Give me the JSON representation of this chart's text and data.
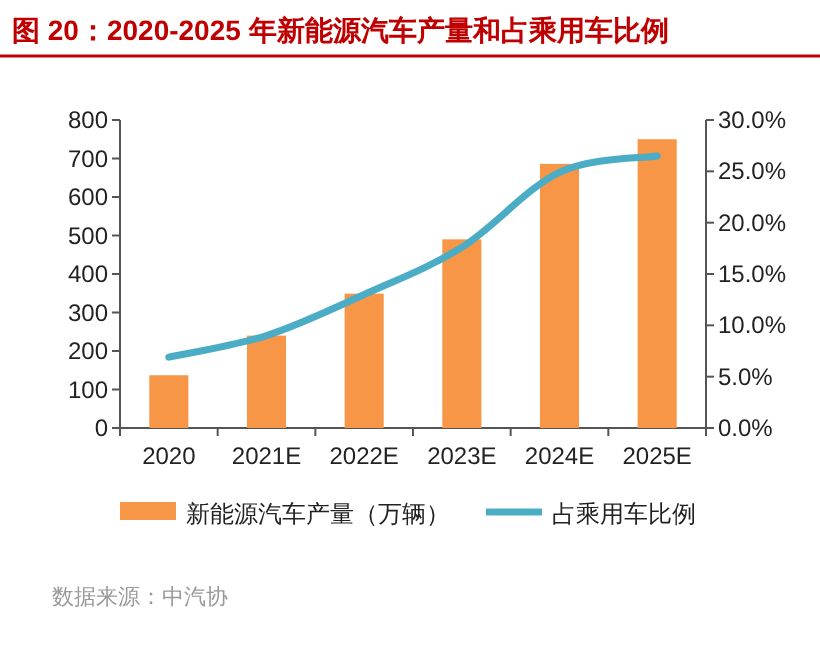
{
  "chart_data": {
    "type": "bar",
    "title": "图 20：2020-2025 年新能源汽车产量和占乘用车比例",
    "categories": [
      "2020",
      "2021E",
      "2022E",
      "2023E",
      "2024E",
      "2025E"
    ],
    "series": [
      {
        "name": "新能源汽车产量（万辆）",
        "color": "#f79646",
        "values": [
          137,
          240,
          349,
          490,
          686,
          750
        ]
      },
      {
        "name": "占乘用车比例",
        "type": "line",
        "axis": "y2",
        "color": "#4bacc6",
        "values": [
          6.9,
          9.0,
          13.0,
          17.6,
          24.9,
          26.5
        ]
      }
    ],
    "ylim": [
      0,
      800
    ],
    "yticks": [
      0,
      100,
      200,
      300,
      400,
      500,
      600,
      700,
      800
    ],
    "y2lim": [
      0,
      30
    ],
    "y2ticks": [
      {
        "value": 0,
        "label": "0.0%"
      },
      {
        "value": 5,
        "label": "5.0%"
      },
      {
        "value": 10,
        "label": "10.0%"
      },
      {
        "value": 15,
        "label": "15.0%"
      },
      {
        "value": 20,
        "label": "20.0%"
      },
      {
        "value": 25,
        "label": "25.0%"
      },
      {
        "value": 30,
        "label": "30.0%"
      }
    ],
    "legend": "bottom",
    "grid": false,
    "annotations": [
      "数据来源：中汽协"
    ]
  }
}
